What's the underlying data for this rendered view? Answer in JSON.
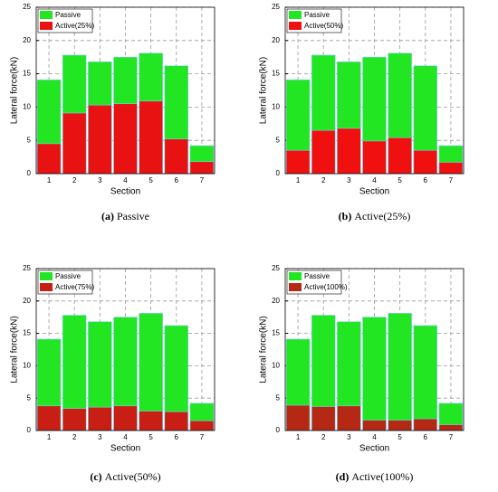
{
  "chart_data": [
    {
      "type": "bar",
      "categories": [
        "1",
        "2",
        "3",
        "4",
        "5",
        "6",
        "7"
      ],
      "series": [
        {
          "name": "Passive",
          "color": "#22e622",
          "values": [
            14.1,
            17.8,
            16.8,
            17.5,
            18.1,
            16.2,
            4.2
          ]
        },
        {
          "name": "Active(25%)",
          "color": "#e81212",
          "values": [
            4.5,
            9.1,
            10.3,
            10.5,
            10.9,
            5.2,
            1.8
          ]
        }
      ],
      "xlabel": "Section",
      "ylabel": "Lateral force(kN)",
      "ylim": [
        0,
        25
      ],
      "yticks": [
        0,
        5,
        10,
        15,
        20,
        25
      ],
      "grid": true,
      "legend": "upper left",
      "caption_label": "(a)",
      "caption": "Passive"
    },
    {
      "type": "bar",
      "categories": [
        "1",
        "2",
        "3",
        "4",
        "5",
        "6",
        "7"
      ],
      "series": [
        {
          "name": "Passive",
          "color": "#22e622",
          "values": [
            14.1,
            17.8,
            16.8,
            17.5,
            18.1,
            16.2,
            4.2
          ]
        },
        {
          "name": "Active(50%)",
          "color": "#f01010",
          "values": [
            3.5,
            6.5,
            6.8,
            4.9,
            5.4,
            3.5,
            1.7
          ]
        }
      ],
      "xlabel": "Section",
      "ylabel": "Lateral force(kN)",
      "ylim": [
        0,
        25
      ],
      "yticks": [
        0,
        5,
        10,
        15,
        20,
        25
      ],
      "grid": true,
      "legend": "upper left",
      "caption_label": "(b)",
      "caption": "Active(25%)"
    },
    {
      "type": "bar",
      "categories": [
        "1",
        "2",
        "3",
        "4",
        "5",
        "6",
        "7"
      ],
      "series": [
        {
          "name": "Passive",
          "color": "#22e622",
          "values": [
            14.1,
            17.8,
            16.8,
            17.5,
            18.1,
            16.2,
            4.2
          ]
        },
        {
          "name": "Active(75%)",
          "color": "#c81e14",
          "values": [
            3.8,
            3.4,
            3.6,
            3.8,
            3.0,
            2.9,
            1.5
          ]
        }
      ],
      "xlabel": "Section",
      "ylabel": "Lateral force(kN)",
      "ylim": [
        0,
        25
      ],
      "yticks": [
        0,
        5,
        10,
        15,
        20,
        25
      ],
      "grid": true,
      "legend": "upper left",
      "caption_label": "(c)",
      "caption": "Active(50%)"
    },
    {
      "type": "bar",
      "categories": [
        "1",
        "2",
        "3",
        "4",
        "5",
        "6",
        "7"
      ],
      "series": [
        {
          "name": "Passive",
          "color": "#22e622",
          "values": [
            14.1,
            17.8,
            16.8,
            17.5,
            18.1,
            16.2,
            4.2
          ]
        },
        {
          "name": "Active(100%)",
          "color": "#b42814",
          "values": [
            3.9,
            3.7,
            3.8,
            1.6,
            1.6,
            1.8,
            0.9
          ]
        }
      ],
      "xlabel": "Section",
      "ylabel": "Lateral force(kN)",
      "ylim": [
        0,
        25
      ],
      "yticks": [
        0,
        5,
        10,
        15,
        20,
        25
      ],
      "grid": true,
      "legend": "upper left",
      "caption_label": "(d)",
      "caption": "Active(100%)"
    }
  ]
}
